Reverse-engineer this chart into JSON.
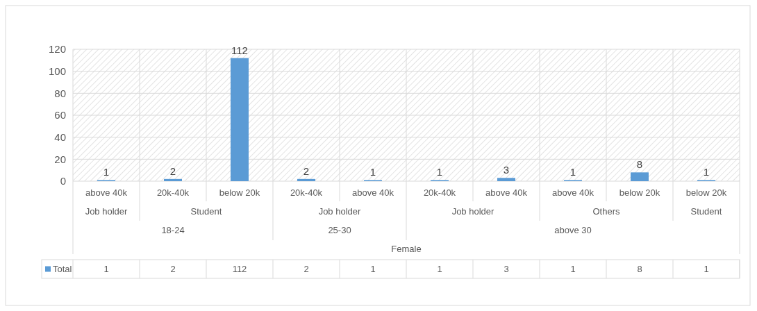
{
  "chart_data": {
    "type": "bar",
    "categories": [
      "above 40k",
      "20k-40k",
      "below 20k",
      "20k-40k",
      "above 40k",
      "20k-40k",
      "above 40k",
      "above 40k",
      "below 20k",
      "below 20k"
    ],
    "series": [
      {
        "name": "Total",
        "color": "#5b9bd5",
        "values": [
          1,
          2,
          112,
          2,
          1,
          1,
          3,
          1,
          8,
          1
        ],
        "value_labels": [
          "1",
          "2",
          "112",
          "2",
          "1",
          "1",
          "3",
          "1",
          "8",
          "1"
        ]
      }
    ],
    "ylim": [
      0,
      120
    ],
    "yticks": [
      0,
      20,
      40,
      60,
      80,
      100,
      120
    ],
    "grid": true,
    "legend": "bottom",
    "annotations": [
      "Job holder",
      "Student",
      "Job holder",
      "Job holder",
      "Others",
      "Student",
      "18-24",
      "25-30",
      "above 30",
      "Female",
      "1",
      "2",
      "112",
      "2",
      "1",
      "1",
      "3",
      "1",
      "8",
      "1"
    ]
  }
}
